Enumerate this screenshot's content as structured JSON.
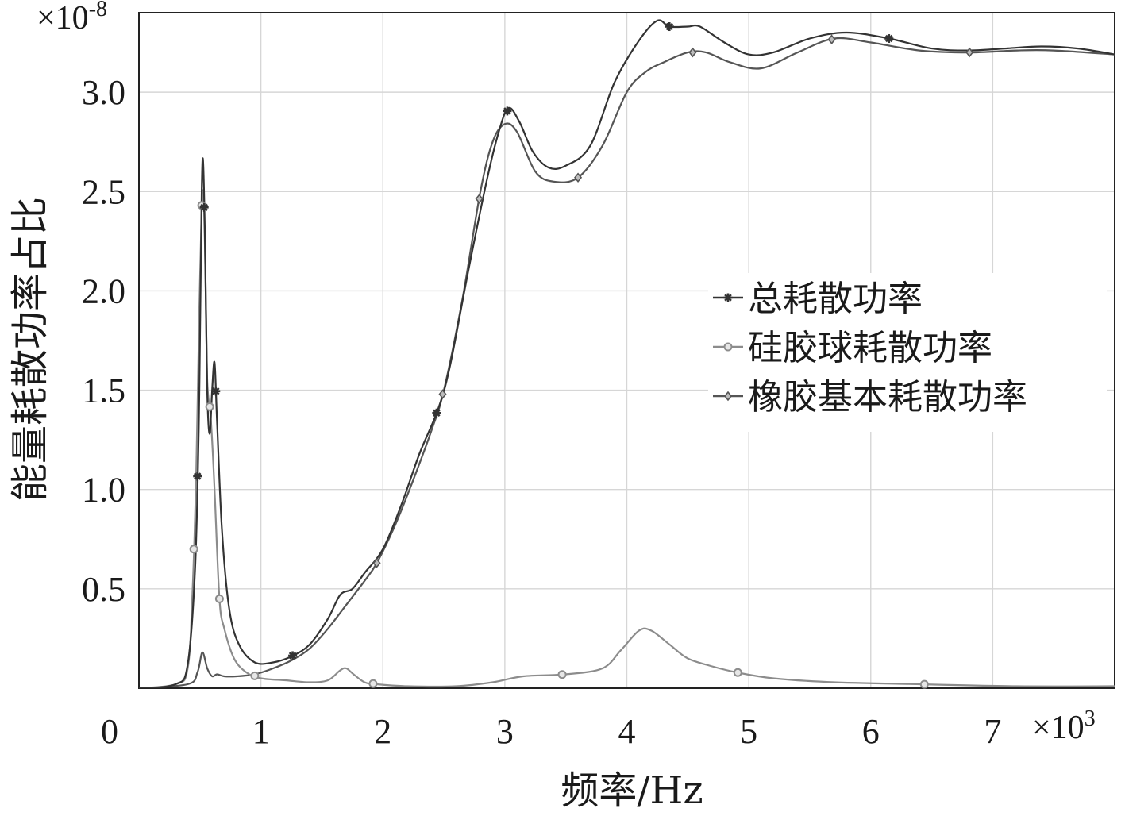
{
  "chart_data": {
    "type": "line",
    "xlabel": "频率/Hz",
    "ylabel": "能量耗散功率占比",
    "x_multiplier": "×10",
    "x_multiplier_exp": "3",
    "y_multiplier": "×10",
    "y_multiplier_exp": "-8",
    "xlim": [
      0,
      8000
    ],
    "ylim": [
      0,
      3.4
    ],
    "x_ticks": [
      "0",
      "1",
      "2",
      "3",
      "4",
      "5",
      "6",
      "7"
    ],
    "y_ticks": [
      "0.5",
      "1.0",
      "1.5",
      "2.0",
      "2.5",
      "3.0"
    ],
    "grid": true,
    "legend_position": "center-right",
    "series": [
      {
        "name": "总耗散功率",
        "color": "#333333",
        "marker": "asterisk",
        "points": [
          [
            0,
            0
          ],
          [
            300,
            0.02
          ],
          [
            400,
            0.12
          ],
          [
            460,
            0.6
          ],
          [
            490,
            1.3
          ],
          [
            505,
            2.0
          ],
          [
            515,
            2.5
          ],
          [
            525,
            2.66
          ],
          [
            540,
            2.3
          ],
          [
            560,
            1.5
          ],
          [
            580,
            1.28
          ],
          [
            600,
            1.5
          ],
          [
            620,
            1.64
          ],
          [
            640,
            1.35
          ],
          [
            680,
            0.8
          ],
          [
            740,
            0.4
          ],
          [
            820,
            0.22
          ],
          [
            950,
            0.13
          ],
          [
            1100,
            0.13
          ],
          [
            1250,
            0.16
          ],
          [
            1400,
            0.22
          ],
          [
            1550,
            0.35
          ],
          [
            1650,
            0.47
          ],
          [
            1750,
            0.5
          ],
          [
            1850,
            0.58
          ],
          [
            2000,
            0.7
          ],
          [
            2150,
            0.92
          ],
          [
            2300,
            1.18
          ],
          [
            2450,
            1.4
          ],
          [
            2550,
            1.62
          ],
          [
            2700,
            2.1
          ],
          [
            2850,
            2.55
          ],
          [
            2950,
            2.8
          ],
          [
            3030,
            2.92
          ],
          [
            3120,
            2.85
          ],
          [
            3230,
            2.7
          ],
          [
            3360,
            2.62
          ],
          [
            3500,
            2.63
          ],
          [
            3700,
            2.73
          ],
          [
            3900,
            3.05
          ],
          [
            4100,
            3.26
          ],
          [
            4250,
            3.36
          ],
          [
            4350,
            3.33
          ],
          [
            4500,
            3.33
          ],
          [
            4600,
            3.33
          ],
          [
            4800,
            3.25
          ],
          [
            5000,
            3.19
          ],
          [
            5200,
            3.2
          ],
          [
            5500,
            3.27
          ],
          [
            5800,
            3.3
          ],
          [
            6150,
            3.27
          ],
          [
            6500,
            3.22
          ],
          [
            6800,
            3.21
          ],
          [
            7100,
            3.22
          ],
          [
            7400,
            3.23
          ],
          [
            7700,
            3.22
          ],
          [
            8000,
            3.19
          ]
        ],
        "marker_x": [
          480,
          535,
          630,
          1260,
          2440,
          3020,
          4350,
          6150
        ]
      },
      {
        "name": "硅胶球耗散功率",
        "color": "#8c8c8c",
        "marker": "circle",
        "points": [
          [
            0,
            0
          ],
          [
            300,
            0.02
          ],
          [
            400,
            0.1
          ],
          [
            440,
            0.5
          ],
          [
            470,
            1.1
          ],
          [
            495,
            1.9
          ],
          [
            515,
            2.43
          ],
          [
            530,
            2.47
          ],
          [
            545,
            2.1
          ],
          [
            560,
            1.55
          ],
          [
            590,
            1.35
          ],
          [
            620,
            1.0
          ],
          [
            660,
            0.45
          ],
          [
            700,
            0.3
          ],
          [
            780,
            0.15
          ],
          [
            880,
            0.08
          ],
          [
            1000,
            0.05
          ],
          [
            1200,
            0.04
          ],
          [
            1400,
            0.03
          ],
          [
            1550,
            0.04
          ],
          [
            1650,
            0.09
          ],
          [
            1700,
            0.1
          ],
          [
            1760,
            0.07
          ],
          [
            1850,
            0.03
          ],
          [
            1950,
            0.02
          ],
          [
            2200,
            0.01
          ],
          [
            2600,
            0.01
          ],
          [
            2900,
            0.03
          ],
          [
            3150,
            0.06
          ],
          [
            3500,
            0.07
          ],
          [
            3800,
            0.1
          ],
          [
            3950,
            0.19
          ],
          [
            4100,
            0.29
          ],
          [
            4200,
            0.29
          ],
          [
            4350,
            0.22
          ],
          [
            4500,
            0.15
          ],
          [
            4700,
            0.11
          ],
          [
            4900,
            0.08
          ],
          [
            5200,
            0.05
          ],
          [
            5700,
            0.03
          ],
          [
            6400,
            0.02
          ],
          [
            7200,
            0.01
          ],
          [
            8000,
            0.01
          ]
        ],
        "marker_x": [
          450,
          515,
          580,
          660,
          950,
          1920,
          3470,
          4910,
          6440
        ]
      },
      {
        "name": "橡胶基本耗散功率",
        "color": "#555555",
        "marker": "diamond",
        "points": [
          [
            0,
            0
          ],
          [
            400,
            0.02
          ],
          [
            480,
            0.08
          ],
          [
            520,
            0.18
          ],
          [
            560,
            0.1
          ],
          [
            600,
            0.06
          ],
          [
            640,
            0.07
          ],
          [
            700,
            0.06
          ],
          [
            800,
            0.06
          ],
          [
            950,
            0.07
          ],
          [
            1100,
            0.1
          ],
          [
            1250,
            0.14
          ],
          [
            1400,
            0.2
          ],
          [
            1550,
            0.3
          ],
          [
            1700,
            0.42
          ],
          [
            1850,
            0.54
          ],
          [
            1950,
            0.63
          ],
          [
            2100,
            0.82
          ],
          [
            2250,
            1.05
          ],
          [
            2400,
            1.3
          ],
          [
            2500,
            1.5
          ],
          [
            2650,
            1.95
          ],
          [
            2800,
            2.5
          ],
          [
            2900,
            2.75
          ],
          [
            3000,
            2.84
          ],
          [
            3100,
            2.8
          ],
          [
            3250,
            2.6
          ],
          [
            3400,
            2.55
          ],
          [
            3600,
            2.57
          ],
          [
            3800,
            2.73
          ],
          [
            4000,
            3.0
          ],
          [
            4150,
            3.1
          ],
          [
            4300,
            3.15
          ],
          [
            4500,
            3.2
          ],
          [
            4650,
            3.2
          ],
          [
            4850,
            3.15
          ],
          [
            5100,
            3.12
          ],
          [
            5400,
            3.2
          ],
          [
            5700,
            3.27
          ],
          [
            6000,
            3.25
          ],
          [
            6400,
            3.21
          ],
          [
            6800,
            3.2
          ],
          [
            7200,
            3.21
          ],
          [
            7500,
            3.21
          ],
          [
            8000,
            3.19
          ]
        ],
        "marker_x": [
          1950,
          2490,
          2790,
          3600,
          4540,
          5680,
          6810
        ]
      }
    ]
  }
}
